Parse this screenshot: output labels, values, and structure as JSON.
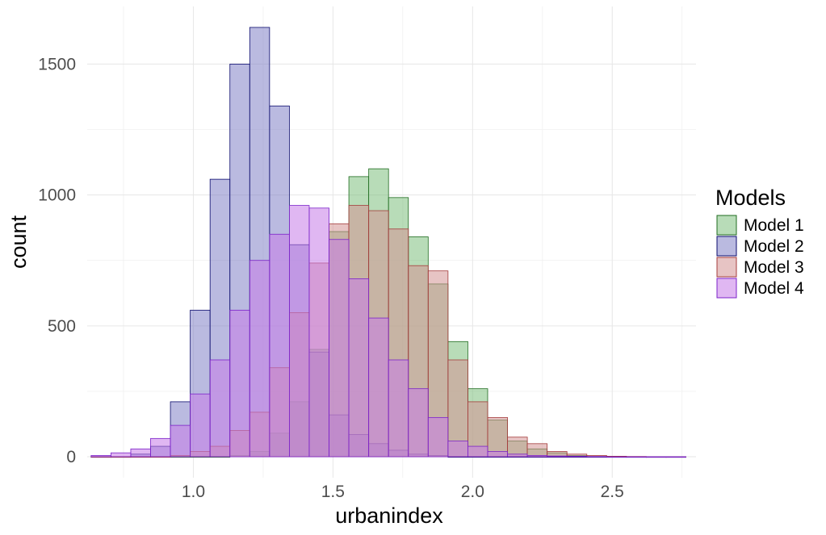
{
  "chart_data": {
    "type": "bar",
    "subtype": "overlapping-histogram",
    "title": "",
    "xlabel": "urbanindex",
    "ylabel": "count",
    "xlim": [
      0.62,
      2.8
    ],
    "ylim": [
      -80,
      1720
    ],
    "x_ticks": [
      1.0,
      1.5,
      2.0,
      2.5
    ],
    "x_tick_labels": [
      "1.0",
      "1.5",
      "2.0",
      "2.5"
    ],
    "y_ticks": [
      0,
      500,
      1000,
      1500
    ],
    "y_tick_labels": [
      "0",
      "500",
      "1000",
      "1500"
    ],
    "grid": true,
    "legend": {
      "title": "Models",
      "position": "right"
    },
    "bin_edges": [
      0.634,
      0.705,
      0.776,
      0.847,
      0.918,
      0.989,
      1.06,
      1.131,
      1.202,
      1.273,
      1.344,
      1.415,
      1.486,
      1.557,
      1.628,
      1.699,
      1.77,
      1.841,
      1.912,
      1.983,
      2.054,
      2.125,
      2.196,
      2.267,
      2.338,
      2.409,
      2.48,
      2.551,
      2.622,
      2.693,
      2.764
    ],
    "series": [
      {
        "name": "Model 1",
        "fill": "#7dbf7d",
        "stroke": "#1f6b1f",
        "values": [
          0,
          0,
          0,
          0,
          0,
          0,
          0,
          5,
          20,
          90,
          210,
          410,
          860,
          1070,
          1100,
          990,
          840,
          660,
          440,
          260,
          140,
          60,
          30,
          15,
          5,
          0,
          0,
          0,
          0,
          0
        ]
      },
      {
        "name": "Model 2",
        "fill": "#8181c6",
        "stroke": "#0b0b6e",
        "values": [
          0,
          0,
          10,
          40,
          210,
          560,
          1060,
          1500,
          1640,
          1340,
          810,
          400,
          160,
          85,
          50,
          25,
          10,
          5,
          0,
          0,
          0,
          0,
          0,
          0,
          0,
          0,
          0,
          0,
          0,
          0
        ]
      },
      {
        "name": "Model 3",
        "fill": "#d49393",
        "stroke": "#a43b3b",
        "values": [
          0,
          0,
          0,
          0,
          5,
          20,
          40,
          100,
          170,
          340,
          550,
          740,
          890,
          960,
          940,
          870,
          730,
          710,
          370,
          210,
          150,
          75,
          50,
          20,
          10,
          5,
          2,
          1,
          0,
          0
        ]
      },
      {
        "name": "Model 4",
        "fill": "#c77be8",
        "stroke": "#7b22c9",
        "values": [
          5,
          15,
          30,
          70,
          120,
          240,
          370,
          560,
          750,
          850,
          960,
          950,
          830,
          680,
          530,
          370,
          260,
          150,
          60,
          40,
          20,
          10,
          5,
          3,
          2,
          1,
          0,
          0,
          0,
          0
        ]
      }
    ]
  }
}
